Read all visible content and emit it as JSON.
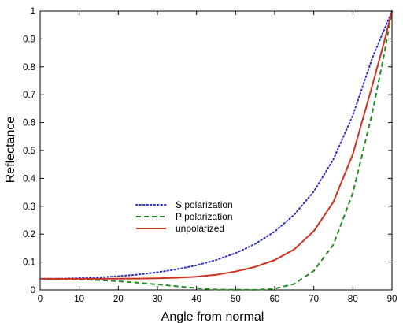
{
  "chart_data": {
    "type": "line",
    "title": "",
    "xlabel": "Angle from normal",
    "ylabel": "Reflectance",
    "xlim": [
      0,
      90
    ],
    "ylim": [
      0,
      1
    ],
    "x_ticks": [
      "0",
      "10",
      "20",
      "30",
      "40",
      "50",
      "60",
      "70",
      "80",
      "90"
    ],
    "y_ticks": [
      "0",
      "0.1",
      "0.2",
      "0.3",
      "0.4",
      "0.5",
      "0.6",
      "0.7",
      "0.8",
      "0.9",
      "1"
    ],
    "grid": false,
    "legend_position": "center-left",
    "series": [
      {
        "name": "S polarization",
        "color": "#3333cc",
        "style": "dotted",
        "x": [
          0,
          5,
          10,
          15,
          20,
          25,
          30,
          35,
          40,
          45,
          50,
          55,
          60,
          65,
          70,
          75,
          80,
          85,
          88,
          90
        ],
        "y": [
          0.04,
          0.0405,
          0.0422,
          0.0449,
          0.0492,
          0.0552,
          0.0633,
          0.0742,
          0.0884,
          0.1072,
          0.1319,
          0.1649,
          0.2093,
          0.2697,
          0.353,
          0.4679,
          0.6263,
          0.8325,
          0.933,
          1.0
        ]
      },
      {
        "name": "P polarization",
        "color": "#228b22",
        "style": "dashed",
        "x": [
          0,
          5,
          10,
          15,
          20,
          25,
          30,
          35,
          40,
          45,
          50,
          55,
          60,
          65,
          70,
          75,
          80,
          85,
          88,
          90
        ],
        "y": [
          0.04,
          0.0395,
          0.0378,
          0.0351,
          0.0311,
          0.0259,
          0.0198,
          0.0131,
          0.0065,
          0.0014,
          0.0006,
          0.0005,
          0.0047,
          0.0215,
          0.0684,
          0.1622,
          0.3475,
          0.637,
          0.845,
          1.0
        ]
      },
      {
        "name": "unpolarized",
        "color": "#cc3322",
        "style": "solid",
        "x": [
          0,
          5,
          10,
          15,
          20,
          25,
          30,
          35,
          40,
          45,
          50,
          55,
          60,
          65,
          70,
          75,
          80,
          85,
          88,
          90
        ],
        "y": [
          0.04,
          0.04,
          0.04,
          0.04,
          0.0402,
          0.0406,
          0.0416,
          0.0437,
          0.0475,
          0.0543,
          0.0662,
          0.0827,
          0.107,
          0.1456,
          0.2107,
          0.3151,
          0.4869,
          0.7348,
          0.889,
          1.0
        ]
      }
    ]
  }
}
